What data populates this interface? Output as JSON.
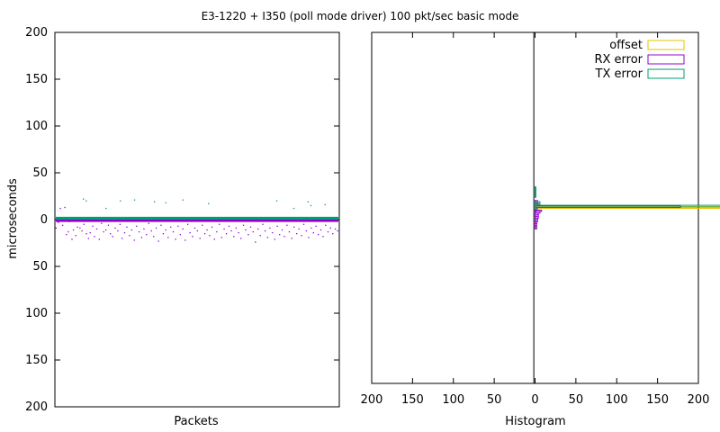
{
  "chart_data": [
    {
      "type": "scatter",
      "panel": "left",
      "title": "E3-1220 + I350 (poll mode driver) 100 pkt/sec basic mode",
      "xlabel": "Packets",
      "ylabel": "microseconds",
      "ylim": [
        -200,
        200
      ],
      "yticks": [
        200,
        150,
        100,
        50,
        0,
        -50,
        -100,
        -150,
        -200
      ],
      "ytick_labels": [
        "200",
        "150",
        "100",
        "50",
        "0",
        "50",
        "100",
        "150",
        "200"
      ],
      "x_tick_labels": [],
      "grid": false,
      "series": [
        {
          "name": "offset",
          "color": "#e6c300",
          "band": [
            -1.5,
            1.5
          ]
        },
        {
          "name": "RX error",
          "color": "#9400d3",
          "band": [
            -2.5,
            0
          ],
          "outliers": [
            [
              0.004,
              -9
            ],
            [
              0.012,
              -3
            ],
            [
              0.019,
              12
            ],
            [
              0.027,
              -6
            ],
            [
              0.035,
              13
            ],
            [
              0.04,
              -16
            ],
            [
              0.047,
              -13
            ],
            [
              0.051,
              -2
            ],
            [
              0.06,
              -21
            ],
            [
              0.065,
              -11
            ],
            [
              0.073,
              -17
            ],
            [
              0.079,
              -8
            ],
            [
              0.088,
              -9
            ],
            [
              0.095,
              -12
            ],
            [
              0.102,
              -5
            ],
            [
              0.111,
              -15
            ],
            [
              0.118,
              -20
            ],
            [
              0.124,
              -14
            ],
            [
              0.133,
              -7
            ],
            [
              0.139,
              -18
            ],
            [
              0.147,
              -10
            ],
            [
              0.156,
              -21
            ],
            [
              0.164,
              -4
            ],
            [
              0.171,
              -13
            ],
            [
              0.179,
              -11
            ],
            [
              0.188,
              -6
            ],
            [
              0.195,
              -15
            ],
            [
              0.203,
              -18
            ],
            [
              0.212,
              -9
            ],
            [
              0.221,
              -12
            ],
            [
              0.229,
              -5
            ],
            [
              0.236,
              -20
            ],
            [
              0.245,
              -14
            ],
            [
              0.253,
              -8
            ],
            [
              0.262,
              -17
            ],
            [
              0.27,
              -11
            ],
            [
              0.279,
              -22
            ],
            [
              0.287,
              -7
            ],
            [
              0.296,
              -13
            ],
            [
              0.305,
              -19
            ],
            [
              0.313,
              -10
            ],
            [
              0.322,
              -16
            ],
            [
              0.33,
              -4
            ],
            [
              0.339,
              -12
            ],
            [
              0.347,
              -18
            ],
            [
              0.356,
              -9
            ],
            [
              0.364,
              -23
            ],
            [
              0.373,
              -6
            ],
            [
              0.381,
              -15
            ],
            [
              0.39,
              -11
            ],
            [
              0.398,
              -19
            ],
            [
              0.407,
              -8
            ],
            [
              0.416,
              -13
            ],
            [
              0.424,
              -21
            ],
            [
              0.433,
              -7
            ],
            [
              0.441,
              -16
            ],
            [
              0.45,
              -10
            ],
            [
              0.458,
              -22
            ],
            [
              0.467,
              -5
            ],
            [
              0.475,
              -14
            ],
            [
              0.484,
              -18
            ],
            [
              0.492,
              -9
            ],
            [
              0.501,
              -12
            ],
            [
              0.51,
              -20
            ],
            [
              0.518,
              -6
            ],
            [
              0.527,
              -15
            ],
            [
              0.535,
              -11
            ],
            [
              0.544,
              -17
            ],
            [
              0.552,
              -8
            ],
            [
              0.561,
              -21
            ],
            [
              0.569,
              -13
            ],
            [
              0.578,
              -5
            ],
            [
              0.586,
              -19
            ],
            [
              0.595,
              -10
            ],
            [
              0.603,
              -15
            ],
            [
              0.612,
              -7
            ],
            [
              0.62,
              -12
            ],
            [
              0.629,
              -18
            ],
            [
              0.637,
              -9
            ],
            [
              0.646,
              -14
            ],
            [
              0.654,
              -20
            ],
            [
              0.663,
              -6
            ],
            [
              0.671,
              -11
            ],
            [
              0.68,
              -16
            ],
            [
              0.688,
              -8
            ],
            [
              0.697,
              -13
            ],
            [
              0.705,
              -24
            ],
            [
              0.714,
              -10
            ],
            [
              0.722,
              -17
            ],
            [
              0.731,
              -5
            ],
            [
              0.739,
              -12
            ],
            [
              0.748,
              -19
            ],
            [
              0.756,
              -9
            ],
            [
              0.765,
              -14
            ],
            [
              0.773,
              -21
            ],
            [
              0.782,
              -7
            ],
            [
              0.79,
              -16
            ],
            [
              0.799,
              -11
            ],
            [
              0.807,
              -18
            ],
            [
              0.816,
              -6
            ],
            [
              0.824,
              -13
            ],
            [
              0.833,
              -20
            ],
            [
              0.841,
              -8
            ],
            [
              0.85,
              -15
            ],
            [
              0.858,
              -10
            ],
            [
              0.867,
              -17
            ],
            [
              0.875,
              -5
            ],
            [
              0.884,
              -12
            ],
            [
              0.892,
              -19
            ],
            [
              0.901,
              -9
            ],
            [
              0.909,
              -14
            ],
            [
              0.918,
              -7
            ],
            [
              0.926,
              -16
            ],
            [
              0.935,
              -11
            ],
            [
              0.943,
              -18
            ],
            [
              0.952,
              -6
            ],
            [
              0.96,
              -13
            ],
            [
              0.969,
              -9
            ],
            [
              0.977,
              -15
            ],
            [
              0.986,
              -10
            ],
            [
              0.994,
              -12
            ]
          ]
        },
        {
          "name": "TX error",
          "color": "#009e73",
          "band": [
            0,
            3
          ],
          "outliers": [
            [
              0.1,
              22
            ],
            [
              0.11,
              20
            ],
            [
              0.18,
              12
            ],
            [
              0.23,
              20
            ],
            [
              0.28,
              21
            ],
            [
              0.35,
              19
            ],
            [
              0.39,
              18
            ],
            [
              0.45,
              21
            ],
            [
              0.54,
              17
            ],
            [
              0.78,
              20
            ],
            [
              0.84,
              12
            ],
            [
              0.89,
              19
            ],
            [
              0.9,
              15
            ],
            [
              0.95,
              16
            ]
          ]
        }
      ]
    },
    {
      "type": "histogram",
      "panel": "right",
      "xlabel": "Histogram",
      "xlim": [
        200,
        -200
      ],
      "xticks": [
        -200,
        -150,
        -100,
        -50,
        0,
        50,
        100,
        150,
        200
      ],
      "xtick_labels": [
        "200",
        "150",
        "100",
        "50",
        "0",
        "50",
        "100",
        "150",
        "200"
      ],
      "ylim": [
        -200,
        200
      ],
      "note_x": "bar length in data units of the Histogram axis; bins along microseconds",
      "legend": {
        "position": "top-right",
        "entries": [
          "offset",
          "RX error",
          "TX error"
        ]
      },
      "series": [
        {
          "name": "offset",
          "color": "#e6c300",
          "bins": [
            [
              -2.5,
              0.5,
              2
            ],
            [
              -0.5,
              1.5,
              700
            ],
            [
              1.5,
              3.5,
              5
            ]
          ]
        },
        {
          "name": "RX error",
          "color": "#9400d3",
          "bins": [
            [
              -2.5,
              0.5,
              2
            ],
            [
              0.5,
              2.5,
              178
            ],
            [
              2.5,
              4.5,
              4
            ],
            [
              4.5,
              6.5,
              3
            ],
            [
              6.5,
              8.5,
              3
            ],
            [
              -4.5,
              -2.5,
              1
            ],
            [
              -24,
              -22,
              2
            ],
            [
              -22,
              -20,
              2
            ],
            [
              -20,
              -18,
              2
            ],
            [
              -18,
              -16,
              2
            ],
            [
              -16,
              -14,
              3
            ],
            [
              -14,
              -12,
              3
            ],
            [
              -12,
              -10,
              4
            ],
            [
              -10,
              -8,
              4
            ],
            [
              -8,
              -6,
              4
            ],
            [
              -6,
              -4,
              6
            ],
            [
              -4,
              -2.5,
              8
            ]
          ]
        },
        {
          "name": "TX error",
          "color": "#009e73",
          "bins": [
            [
              -1,
              1,
              3
            ],
            [
              1,
              3,
              700
            ],
            [
              3,
              5,
              6
            ],
            [
              5,
              7,
              6
            ],
            [
              12,
              14,
              1
            ],
            [
              14,
              16,
              1
            ],
            [
              16,
              18,
              1
            ],
            [
              18,
              20,
              1
            ],
            [
              20,
              22,
              1
            ],
            [
              22,
              24,
              1
            ]
          ]
        }
      ]
    }
  ]
}
